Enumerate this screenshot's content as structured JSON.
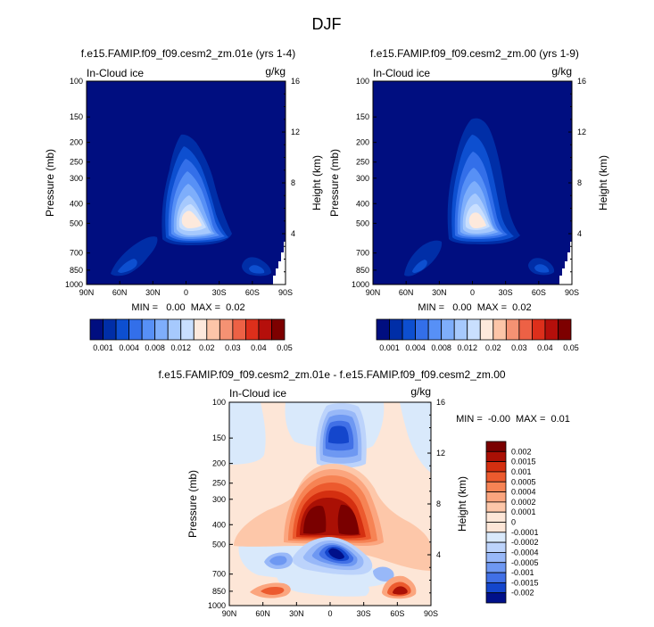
{
  "chart_data": [
    {
      "type": "heatmap",
      "title": "f.e15.FAMIP.f09_f09.cesm2_zm.01e (yrs 1-4)",
      "left_label": "In-Cloud ice",
      "right_label": "g/kg",
      "xlabel": "",
      "ylabel": "Pressure (mb)",
      "ylabel_right": "Height (km)",
      "x_ticks": [
        "90N",
        "60N",
        "30N",
        "0",
        "30S",
        "60S",
        "90S"
      ],
      "y_ticks": [
        "100",
        "150",
        "200",
        "250",
        "300",
        "400",
        "500",
        "700",
        "850",
        "1000"
      ],
      "y_right_ticks": [
        "16",
        "12",
        "8",
        "4"
      ],
      "stats": "MIN =   0.00  MAX =  0.02",
      "levels": [
        "0.001",
        "0.004",
        "0.008",
        "0.012",
        "0.02",
        "0.03",
        "0.04",
        "0.05"
      ],
      "features": [
        {
          "name": "tropical-ice-plume",
          "lat": 2,
          "p_top": 190,
          "p_bottom": 550,
          "max": 0.02
        },
        {
          "name": "nh-low-patch",
          "lat": -52,
          "p_top": 560,
          "p_bottom": 900,
          "max": 0.004
        },
        {
          "name": "sh-low-patch",
          "lat": 66,
          "p_top": 760,
          "p_bottom": 900,
          "max": 0.004
        }
      ]
    },
    {
      "type": "heatmap",
      "title": "f.e15.FAMIP.f09_f09.cesm2_zm.00 (yrs 1-9)",
      "left_label": "In-Cloud ice",
      "right_label": "g/kg",
      "xlabel": "",
      "ylabel": "Pressure (mb)",
      "ylabel_right": "Height (km)",
      "x_ticks": [
        "90N",
        "60N",
        "30N",
        "0",
        "30S",
        "60S",
        "90S"
      ],
      "y_ticks": [
        "100",
        "150",
        "200",
        "250",
        "300",
        "400",
        "500",
        "700",
        "850",
        "1000"
      ],
      "y_right_ticks": [
        "16",
        "12",
        "8",
        "4"
      ],
      "stats": "MIN =   0.00  MAX =  0.02",
      "levels": [
        "0.001",
        "0.004",
        "0.008",
        "0.012",
        "0.02",
        "0.03",
        "0.04",
        "0.05"
      ],
      "features": [
        {
          "name": "tropical-ice-plume",
          "lat": 2,
          "p_top": 150,
          "p_bottom": 550,
          "max": 0.02
        },
        {
          "name": "nh-low-patch",
          "lat": -52,
          "p_top": 600,
          "p_bottom": 900,
          "max": 0.004
        },
        {
          "name": "sh-low-patch",
          "lat": 66,
          "p_top": 760,
          "p_bottom": 900,
          "max": 0.004
        }
      ]
    },
    {
      "type": "heatmap",
      "title": "f.e15.FAMIP.f09_f09.cesm2_zm.01e - f.e15.FAMIP.f09_f09.cesm2_zm.00",
      "left_label": "In-Cloud ice",
      "right_label": "g/kg",
      "xlabel": "",
      "ylabel": "Pressure (mb)",
      "ylabel_right": "Height (km)",
      "x_ticks": [
        "90N",
        "60N",
        "30N",
        "0",
        "30S",
        "60S",
        "90S"
      ],
      "y_ticks": [
        "100",
        "150",
        "200",
        "250",
        "300",
        "400",
        "500",
        "700",
        "850",
        "1000"
      ],
      "y_right_ticks": [
        "16",
        "12",
        "8",
        "4"
      ],
      "stats": "MIN =  -0.00  MAX =  0.01",
      "levels": [
        "0.002",
        "0.0015",
        "0.001",
        "0.0005",
        "0.0004",
        "0.0002",
        "0.0001",
        "0",
        "-0.0001",
        "-0.0002",
        "-0.0004",
        "-0.0005",
        "-0.001",
        "-0.0015",
        "-0.002"
      ],
      "features": [
        {
          "name": "upper-negative-tower",
          "lat": 2,
          "p_top": 110,
          "p_bottom": 230,
          "value": -0.0015
        },
        {
          "name": "mid-positive-dome",
          "lat": 0,
          "p_top": 210,
          "p_bottom": 560,
          "value": 0.002
        },
        {
          "name": "low-negative-core",
          "lat": 5,
          "p_top": 500,
          "p_bottom": 720,
          "value": -0.002
        },
        {
          "name": "nh-surface-positive",
          "lat": -45,
          "p_top": 830,
          "p_bottom": 930,
          "value": 0.0015
        },
        {
          "name": "sh-surface-positive",
          "lat": 60,
          "p_top": 820,
          "p_bottom": 940,
          "value": 0.002
        }
      ]
    }
  ],
  "figure": {
    "title": "DJF",
    "panel1_title": "f.e15.FAMIP.f09_f09.cesm2_zm.01e (yrs 1-4)",
    "panel2_title": "f.e15.FAMIP.f09_f09.cesm2_zm.00 (yrs 1-9)",
    "panel3_title": "f.e15.FAMIP.f09_f09.cesm2_zm.01e - f.e15.FAMIP.f09_f09.cesm2_zm.00",
    "left_label": "In-Cloud ice",
    "unit_label": "g/kg",
    "ylabel": "Pressure (mb)",
    "ylabel_right": "Height (km)",
    "stats1": "MIN =   0.00  MAX =  0.02",
    "stats2": "MIN =   0.00  MAX =  0.02",
    "stats3": "MIN =  -0.00  MAX =  0.01"
  },
  "colors": {
    "seq": [
      "#000e80",
      "#002ea7",
      "#0d4fd0",
      "#336fe9",
      "#5790f6",
      "#7eaefb",
      "#a6c9fd",
      "#c9dffe",
      "#fde9dc",
      "#fcc5a8",
      "#f59273",
      "#ed6145",
      "#dd2f1b",
      "#b50f0b",
      "#7d0000"
    ],
    "div": [
      "#7a0000",
      "#aa1005",
      "#d42f10",
      "#ec5a2e",
      "#f68354",
      "#fba57e",
      "#fdc7a9",
      "#fde6d7",
      "#d9e9fb",
      "#bcd3fb",
      "#98b8f8",
      "#6e98f2",
      "#4170e6",
      "#1446cc",
      "#00108a"
    ]
  }
}
